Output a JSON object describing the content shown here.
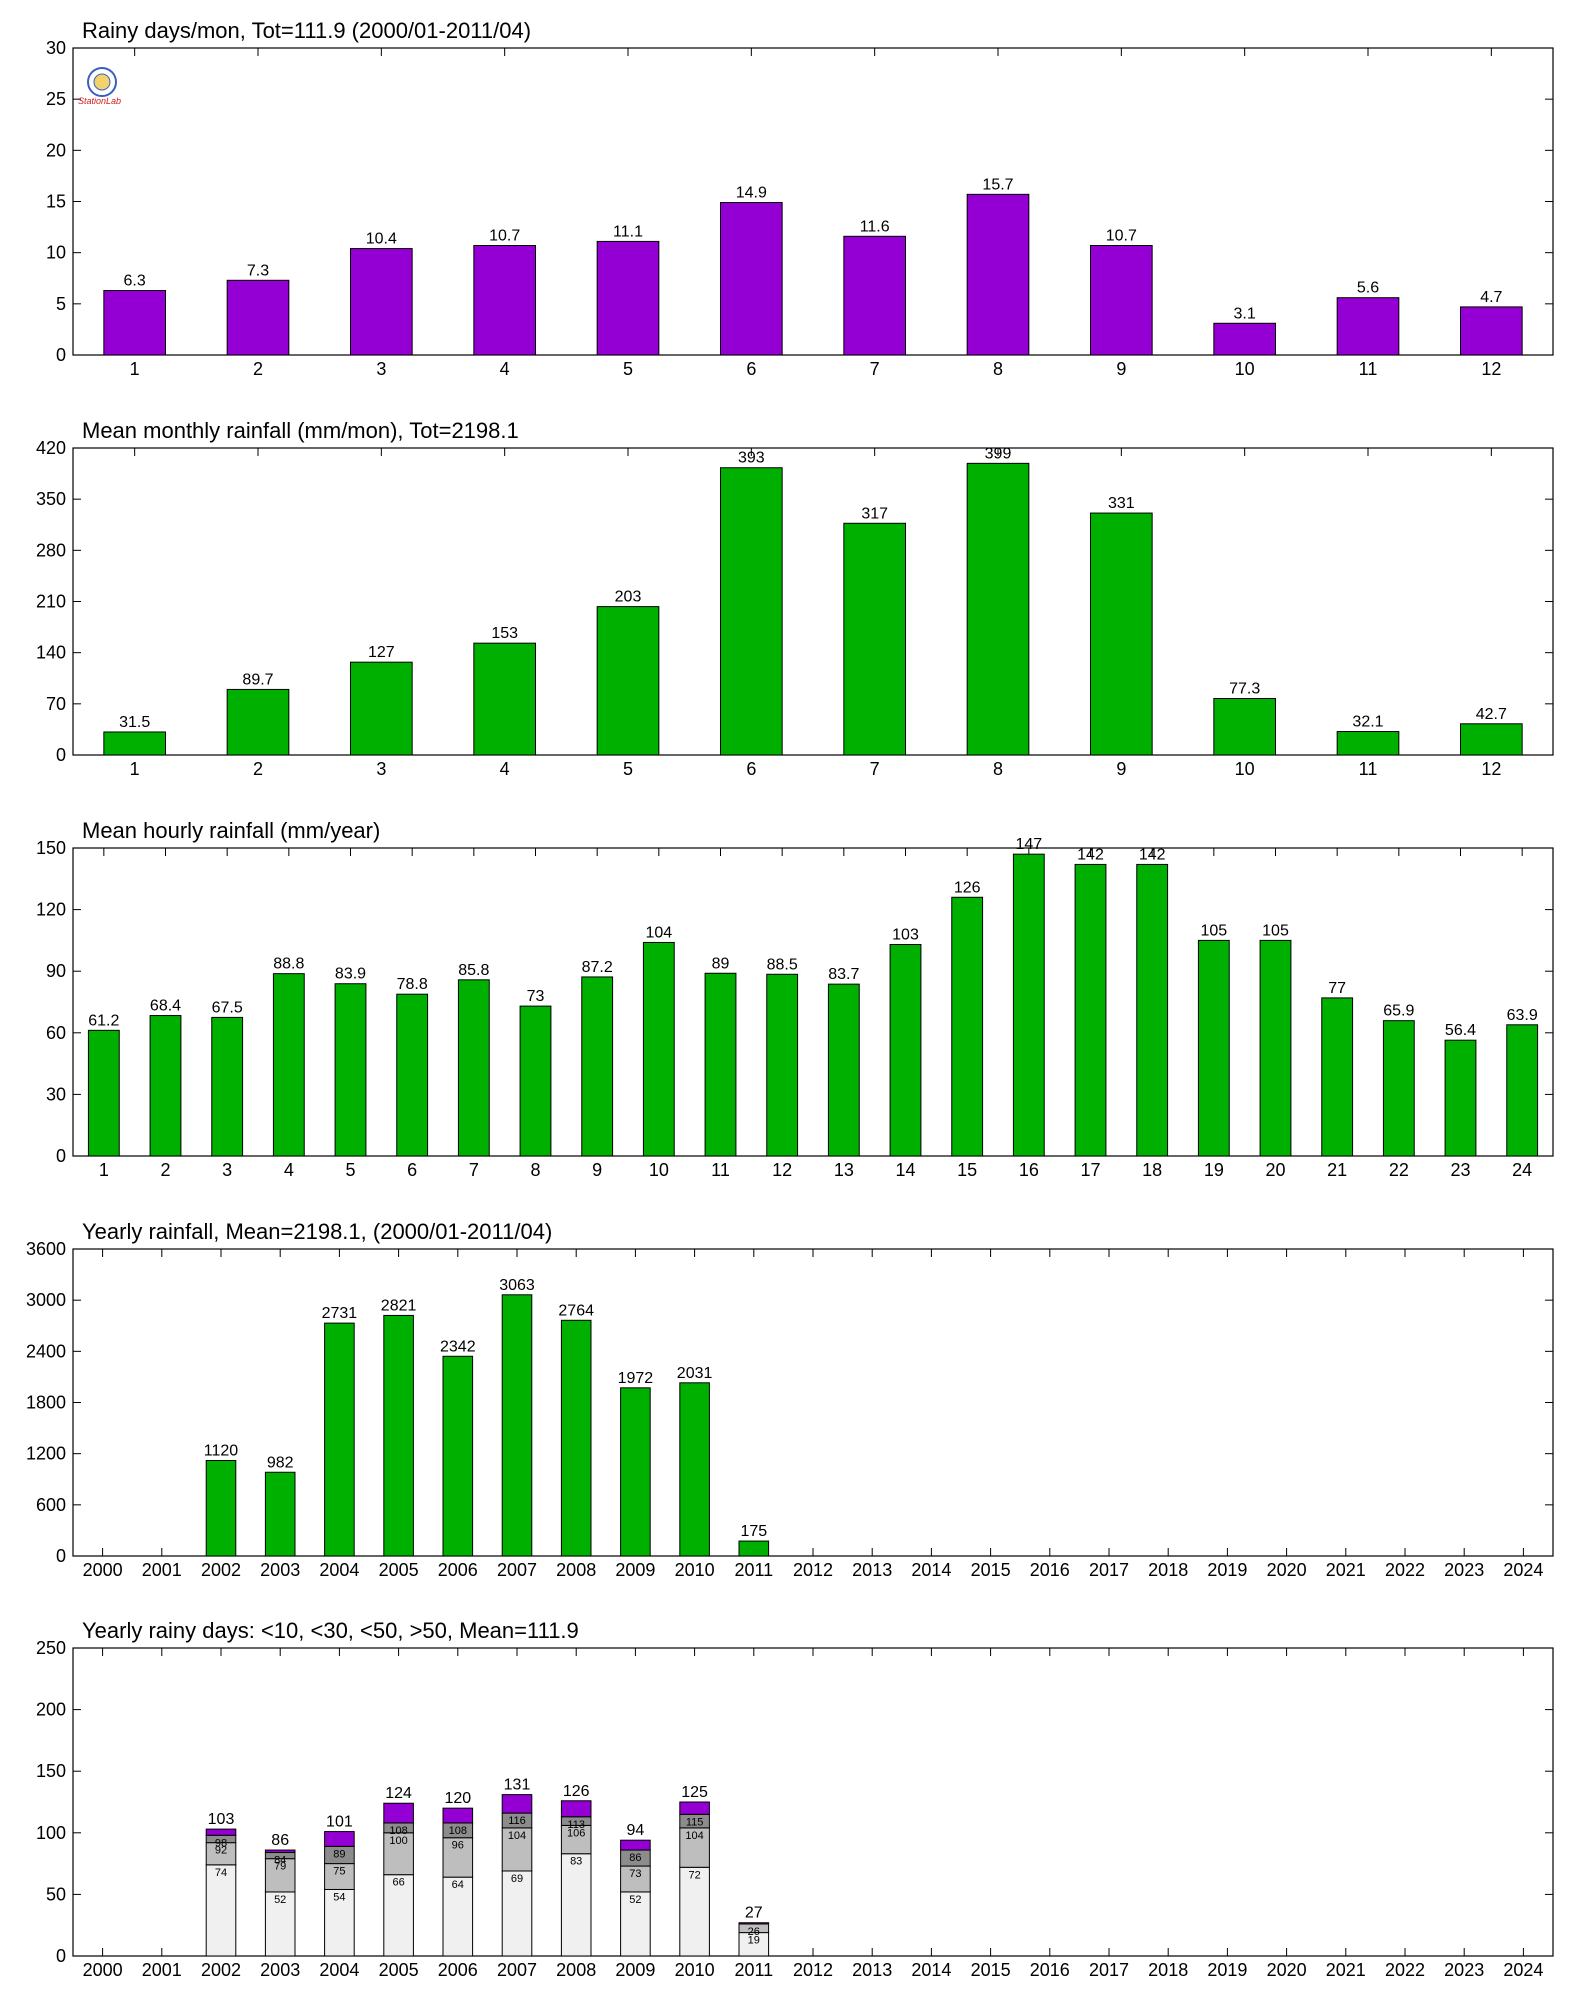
{
  "colors": {
    "purple": "#9400D3",
    "green": "#00B000",
    "seg1": "#F0F0F0",
    "seg2": "#BEBEBE",
    "seg3": "#8C8C8C",
    "seg4": "#9400D3"
  },
  "logo": {
    "text": "StationLab",
    "icon": "station-lab-seal-icon"
  },
  "chart_data": [
    {
      "type": "bar",
      "title": "Rainy days/mon, Tot=111.9 (2000/01-2011/04)",
      "categories": [
        "1",
        "2",
        "3",
        "4",
        "5",
        "6",
        "7",
        "8",
        "9",
        "10",
        "11",
        "12"
      ],
      "values": [
        6.3,
        7.3,
        10.4,
        10.7,
        11.1,
        14.9,
        11.6,
        15.7,
        10.7,
        3.1,
        5.6,
        4.7
      ],
      "labels": [
        "6.3",
        "7.3",
        "10.4",
        "10.7",
        "11.1",
        "14.9",
        "11.6",
        "15.7",
        "10.7",
        "3.1",
        "5.6",
        "4.7"
      ],
      "ylim": [
        0,
        30
      ],
      "yticks": [
        "0",
        "5",
        "10",
        "15",
        "20",
        "25",
        "30"
      ],
      "color": "#9400D3"
    },
    {
      "type": "bar",
      "title": "Mean monthly rainfall (mm/mon), Tot=2198.1",
      "categories": [
        "1",
        "2",
        "3",
        "4",
        "5",
        "6",
        "7",
        "8",
        "9",
        "10",
        "11",
        "12"
      ],
      "values": [
        31.5,
        89.7,
        127,
        153,
        203,
        393,
        317,
        399,
        331,
        77.3,
        32.1,
        42.7
      ],
      "labels": [
        "31.5",
        "89.7",
        "127",
        "153",
        "203",
        "393",
        "317",
        "399",
        "331",
        "77.3",
        "32.1",
        "42.7"
      ],
      "ylim": [
        0,
        420
      ],
      "yticks": [
        "0",
        "70",
        "140",
        "210",
        "280",
        "350",
        "420"
      ],
      "color": "#00B000"
    },
    {
      "type": "bar",
      "title": "Mean hourly rainfall (mm/year)",
      "categories": [
        "1",
        "2",
        "3",
        "4",
        "5",
        "6",
        "7",
        "8",
        "9",
        "10",
        "11",
        "12",
        "13",
        "14",
        "15",
        "16",
        "17",
        "18",
        "19",
        "20",
        "21",
        "22",
        "23",
        "24"
      ],
      "values": [
        61.2,
        68.4,
        67.5,
        88.8,
        83.9,
        78.8,
        85.8,
        73,
        87.2,
        104,
        89,
        88.5,
        83.7,
        103,
        126,
        147,
        142,
        142,
        105,
        105,
        77,
        65.9,
        56.4,
        63.9
      ],
      "labels": [
        "61.2",
        "68.4",
        "67.5",
        "88.8",
        "83.9",
        "78.8",
        "85.8",
        "73",
        "87.2",
        "104",
        "89",
        "88.5",
        "83.7",
        "103",
        "126",
        "147",
        "142",
        "142",
        "105",
        "105",
        "77",
        "65.9",
        "56.4",
        "63.9"
      ],
      "ylim": [
        0,
        150
      ],
      "yticks": [
        "0",
        "30",
        "60",
        "90",
        "120",
        "150"
      ],
      "color": "#00B000"
    },
    {
      "type": "bar",
      "title": "Yearly rainfall, Mean=2198.1, (2000/01-2011/04)",
      "categories": [
        "2000",
        "2001",
        "2002",
        "2003",
        "2004",
        "2005",
        "2006",
        "2007",
        "2008",
        "2009",
        "2010",
        "2011",
        "2012",
        "2013",
        "2014",
        "2015",
        "2016",
        "2017",
        "2018",
        "2019",
        "2020",
        "2021",
        "2022",
        "2023",
        "2024"
      ],
      "values": [
        null,
        null,
        1120,
        982,
        2731,
        2821,
        2342,
        3063,
        2764,
        1972,
        2031,
        175,
        null,
        null,
        null,
        null,
        null,
        null,
        null,
        null,
        null,
        null,
        null,
        null,
        null
      ],
      "labels": [
        "",
        "",
        "1120",
        "982",
        "2731",
        "2821",
        "2342",
        "3063",
        "2764",
        "1972",
        "2031",
        "175",
        "",
        "",
        "",
        "",
        "",
        "",
        "",
        "",
        "",
        "",
        "",
        "",
        ""
      ],
      "ylim": [
        0,
        3600
      ],
      "yticks": [
        "0",
        "600",
        "1200",
        "1800",
        "2400",
        "3000",
        "3600"
      ],
      "color": "#00B000"
    },
    {
      "type": "bar",
      "stacked": true,
      "title": "Yearly rainy days: <10, <30, <50, >50, Mean=111.9",
      "categories": [
        "2000",
        "2001",
        "2002",
        "2003",
        "2004",
        "2005",
        "2006",
        "2007",
        "2008",
        "2009",
        "2010",
        "2011",
        "2012",
        "2013",
        "2014",
        "2015",
        "2016",
        "2017",
        "2018",
        "2019",
        "2020",
        "2021",
        "2022",
        "2023",
        "2024"
      ],
      "totals": [
        null,
        null,
        103,
        86,
        101,
        124,
        120,
        131,
        126,
        94,
        125,
        27,
        null,
        null,
        null,
        null,
        null,
        null,
        null,
        null,
        null,
        null,
        null,
        null,
        null
      ],
      "total_labels": [
        "",
        "",
        "103",
        "86",
        "101",
        "124",
        "120",
        "131",
        "126",
        "94",
        "125",
        "27",
        "",
        "",
        "",
        "",
        "",
        "",
        "",
        "",
        "",
        "",
        "",
        "",
        ""
      ],
      "cumulative": [
        null,
        null,
        [
          74,
          92,
          98,
          103
        ],
        [
          52,
          79,
          84,
          86
        ],
        [
          54,
          75,
          89,
          101
        ],
        [
          66,
          100,
          108,
          124
        ],
        [
          64,
          96,
          108,
          120
        ],
        [
          69,
          104,
          116,
          131
        ],
        [
          83,
          106,
          113,
          126
        ],
        [
          52,
          73,
          86,
          94
        ],
        [
          72,
          104,
          115,
          125
        ],
        [
          19,
          26,
          26,
          27
        ],
        null,
        null,
        null,
        null,
        null,
        null,
        null,
        null,
        null,
        null,
        null,
        null,
        null
      ],
      "cumulative_labels": [
        null,
        null,
        [
          "74",
          "92",
          "98"
        ],
        [
          "52",
          "79",
          "84"
        ],
        [
          "54",
          "75",
          "89"
        ],
        [
          "66",
          "100",
          "108"
        ],
        [
          "64",
          "96",
          "108"
        ],
        [
          "69",
          "104",
          "116"
        ],
        [
          "83",
          "106",
          "113"
        ],
        [
          "52",
          "73",
          "86"
        ],
        [
          "72",
          "104",
          "115"
        ],
        [
          "19",
          "26",
          ""
        ],
        null,
        null,
        null,
        null,
        null,
        null,
        null,
        null,
        null,
        null,
        null,
        null,
        null
      ],
      "ylim": [
        0,
        250
      ],
      "yticks": [
        "0",
        "50",
        "100",
        "150",
        "200",
        "250"
      ]
    }
  ]
}
